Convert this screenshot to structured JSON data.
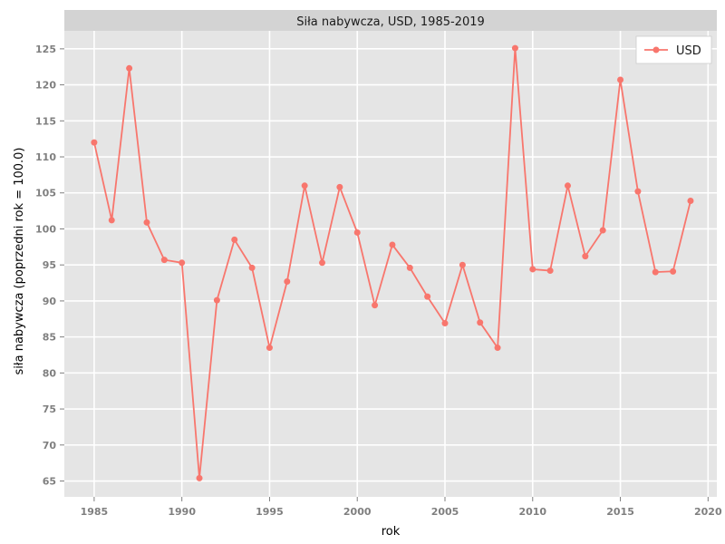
{
  "chart_data": {
    "type": "line",
    "title": "Siła nabywcza, USD, 1985-2019",
    "xlabel": "rok",
    "ylabel": "siła nabywcza (poprzedni rok = 100.0)",
    "xlim": [
      1983.3,
      2020.5
    ],
    "ylim": [
      62.8,
      127.5
    ],
    "xticks": [
      1985,
      1990,
      1995,
      2000,
      2005,
      2010,
      2015,
      2020
    ],
    "yticks": [
      65,
      70,
      75,
      80,
      85,
      90,
      95,
      100,
      105,
      110,
      115,
      120,
      125
    ],
    "grid": true,
    "legend_position": "top-right",
    "series": [
      {
        "name": "USD",
        "color": "#f8766d",
        "x": [
          1985,
          1986,
          1987,
          1988,
          1989,
          1990,
          1991,
          1992,
          1993,
          1994,
          1995,
          1996,
          1997,
          1998,
          1999,
          2000,
          2001,
          2002,
          2003,
          2004,
          2005,
          2006,
          2007,
          2008,
          2009,
          2010,
          2011,
          2012,
          2013,
          2014,
          2015,
          2016,
          2017,
          2018,
          2019
        ],
        "values": [
          112.0,
          101.2,
          122.3,
          100.9,
          95.7,
          95.3,
          65.4,
          90.1,
          98.5,
          94.6,
          83.5,
          92.7,
          106.0,
          95.3,
          105.8,
          99.5,
          89.4,
          97.8,
          94.6,
          90.6,
          86.9,
          95.0,
          87.0,
          83.5,
          125.1,
          94.4,
          94.2,
          106.0,
          96.2,
          99.8,
          120.7,
          105.2,
          94.0,
          94.1,
          103.9
        ]
      }
    ]
  }
}
